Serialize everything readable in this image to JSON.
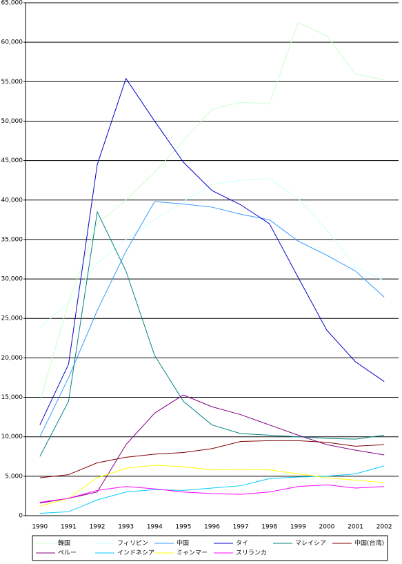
{
  "chart_data": {
    "type": "line",
    "categories": [
      "1990",
      "1991",
      "1992",
      "1993",
      "1994",
      "1995",
      "1996",
      "1997",
      "1998",
      "1999",
      "2000",
      "2001",
      "2002"
    ],
    "series": [
      {
        "name": "韓国",
        "color": "#ccffcc",
        "values": [
          14500,
          27000,
          37000,
          40000,
          43500,
          47500,
          51500,
          52400,
          52200,
          62500,
          60800,
          56000,
          55200
        ]
      },
      {
        "name": "フィリピン",
        "color": "#ccffff",
        "values": [
          23800,
          27000,
          32000,
          35000,
          37500,
          39800,
          42000,
          42500,
          42700,
          40200,
          36200,
          31500,
          29800
        ]
      },
      {
        "name": "中国",
        "color": "#3399ff",
        "values": [
          10000,
          17500,
          26000,
          33500,
          39800,
          39500,
          39100,
          38200,
          37500,
          34800,
          33000,
          31000,
          27700
        ]
      },
      {
        "name": "タイ",
        "color": "#0000cc",
        "values": [
          11500,
          19200,
          44500,
          55400,
          50000,
          44800,
          41200,
          39400,
          37000,
          30200,
          23500,
          19500,
          17000
        ]
      },
      {
        "name": "マレイシア",
        "color": "#008080",
        "values": [
          7500,
          14500,
          38500,
          31000,
          20300,
          14500,
          11500,
          10400,
          10200,
          10000,
          9800,
          9700,
          10200
        ]
      },
      {
        "name": "中国(台湾)",
        "color": "#800000",
        "values": [
          4800,
          5200,
          6700,
          7400,
          7800,
          8000,
          8500,
          9400,
          9500,
          9500,
          9300,
          8800,
          9000
        ]
      },
      {
        "name": "ペルー",
        "color": "#800080",
        "values": [
          1600,
          2200,
          3000,
          9000,
          13000,
          15300,
          13800,
          12800,
          11500,
          10200,
          9000,
          8300,
          7700
        ]
      },
      {
        "name": "インドネシア",
        "color": "#00ccff",
        "values": [
          300,
          500,
          2000,
          3000,
          3300,
          3200,
          3500,
          3800,
          4700,
          4900,
          5000,
          5300,
          6300
        ]
      },
      {
        "name": "ミャンマー",
        "color": "#ffff00",
        "values": [
          1200,
          2200,
          4800,
          6000,
          6400,
          6200,
          5800,
          5900,
          5800,
          5300,
          4800,
          4500,
          4200
        ]
      },
      {
        "name": "スリランカ",
        "color": "#ff00ff",
        "values": [
          1700,
          2200,
          3200,
          3700,
          3400,
          3000,
          2800,
          2700,
          3000,
          3700,
          3900,
          3500,
          3700
        ]
      }
    ],
    "ylim": [
      0,
      65000
    ],
    "yticks": [
      0,
      {
        "value": 5000,
        "label": "5,000"
      },
      {
        "value": 10000,
        "label": "10,000"
      },
      {
        "value": 15000,
        "label": "15,000"
      },
      {
        "value": 20000,
        "label": "20,000"
      },
      {
        "value": 25000,
        "label": "25,000"
      },
      {
        "value": 30000,
        "label": "30,000"
      },
      {
        "value": 35000,
        "label": "35,000"
      },
      {
        "value": 40000,
        "label": "40,000"
      },
      {
        "value": 45000,
        "label": "45,000"
      },
      {
        "value": 50000,
        "label": "50,000"
      },
      {
        "value": 55000,
        "label": "55,000"
      },
      {
        "value": 60000,
        "label": "60,000"
      },
      {
        "value": 65000,
        "label": "65,000"
      }
    ],
    "grid": true
  }
}
